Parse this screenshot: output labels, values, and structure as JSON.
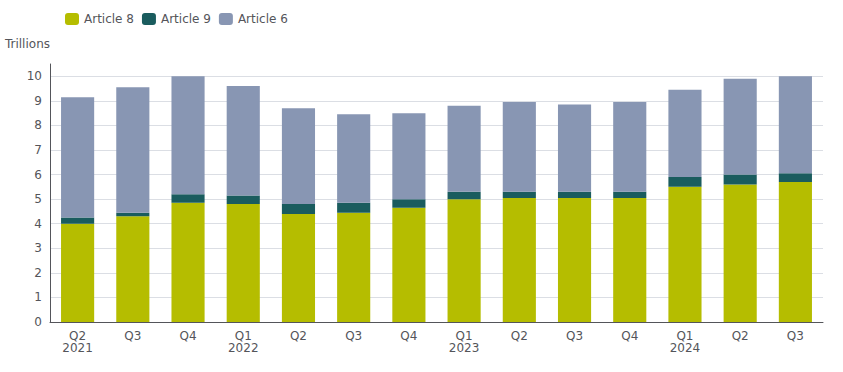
{
  "chart_data": {
    "type": "bar",
    "stacked": true,
    "categories": [
      "Q2\n2021",
      "Q3",
      "Q4",
      "Q1\n2022",
      "Q2",
      "Q3",
      "Q4",
      "Q1\n2023",
      "Q2",
      "Q3",
      "Q4",
      "Q1\n2024",
      "Q2",
      "Q3"
    ],
    "series": [
      {
        "name": "Article 8",
        "color": "#b5bd00",
        "values": [
          4.0,
          4.3,
          4.85,
          4.8,
          4.4,
          4.45,
          4.65,
          5.0,
          5.05,
          5.05,
          5.05,
          5.5,
          5.6,
          5.7
        ]
      },
      {
        "name": "Article 9",
        "color": "#1a5c5e",
        "values": [
          0.25,
          0.15,
          0.35,
          0.35,
          0.4,
          0.4,
          0.35,
          0.3,
          0.25,
          0.25,
          0.25,
          0.4,
          0.4,
          0.35
        ]
      },
      {
        "name": "Article 6",
        "color": "#8896b3",
        "values": [
          4.9,
          5.1,
          4.8,
          4.45,
          3.9,
          3.6,
          3.5,
          3.5,
          3.65,
          3.55,
          3.65,
          3.55,
          3.9,
          3.95
        ]
      }
    ],
    "ylabel": "Trillions",
    "ylim": [
      0,
      10.5
    ],
    "yticks": [
      0,
      1,
      2,
      3,
      4,
      5,
      6,
      7,
      8,
      9,
      10
    ],
    "grid": true,
    "legend": "upper left"
  }
}
